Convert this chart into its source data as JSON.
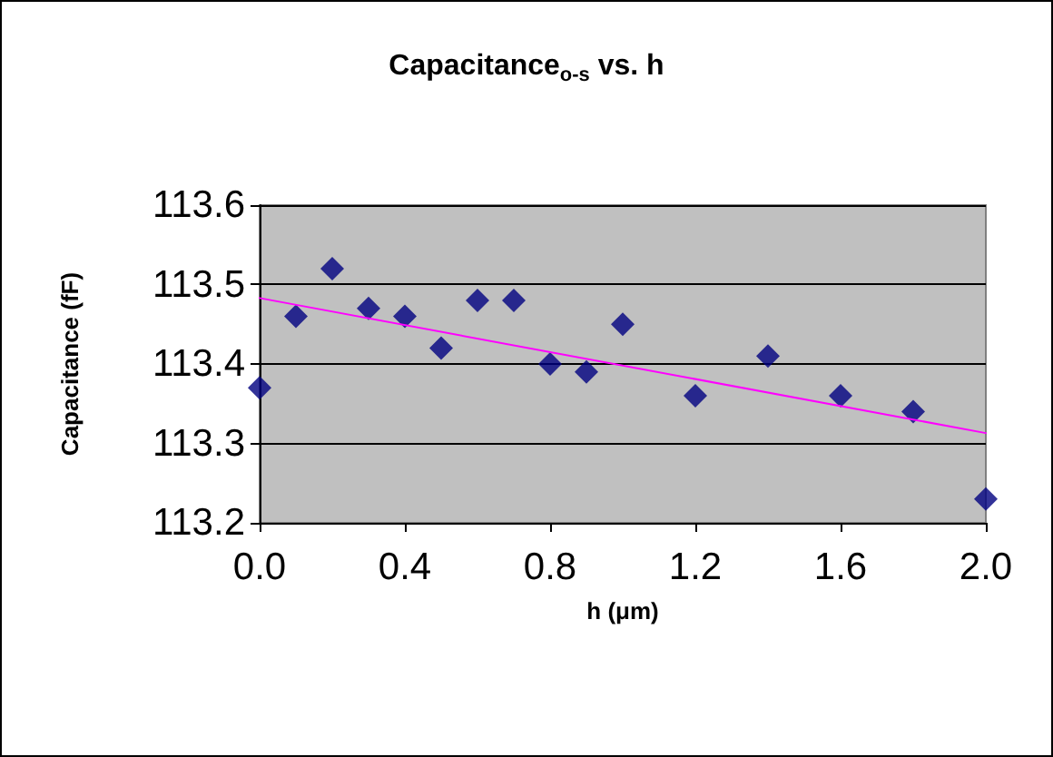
{
  "chart_data": {
    "type": "scatter",
    "title": "Capacitance$_{o-s}$ vs. h",
    "xlabel": "h (μm)",
    "ylabel": "Capacitance (fF)",
    "xlim": [
      0,
      2
    ],
    "ylim": [
      113.2,
      113.6
    ],
    "xticks": [
      {
        "value": 0,
        "label": "0.0"
      },
      {
        "value": 0.4,
        "label": "0.4"
      },
      {
        "value": 0.8,
        "label": "0.8"
      },
      {
        "value": 1.2,
        "label": "1.2"
      },
      {
        "value": 1.6,
        "label": "1.6"
      },
      {
        "value": 2,
        "label": "2.0"
      }
    ],
    "yticks": [
      113.2,
      113.3,
      113.4,
      113.5,
      113.6
    ],
    "grid": "y",
    "series": [
      {
        "marker": "diamond",
        "color": "#000080",
        "x": [
          0,
          0.1,
          0.2,
          0.3,
          0.4,
          0.5,
          0.6,
          0.7,
          0.8,
          0.9,
          1.0,
          1.2,
          1.4,
          1.6,
          1.8,
          2.0
        ],
        "values": [
          113.37,
          113.46,
          113.52,
          113.47,
          113.46,
          113.42,
          113.48,
          113.48,
          113.4,
          113.39,
          113.45,
          113.36,
          113.41,
          113.36,
          113.34,
          113.23
        ]
      },
      {
        "type": "line",
        "marker": "none",
        "color": "#ff00ff",
        "x": [
          0,
          2
        ],
        "values": [
          113.483,
          113.313
        ]
      }
    ]
  }
}
